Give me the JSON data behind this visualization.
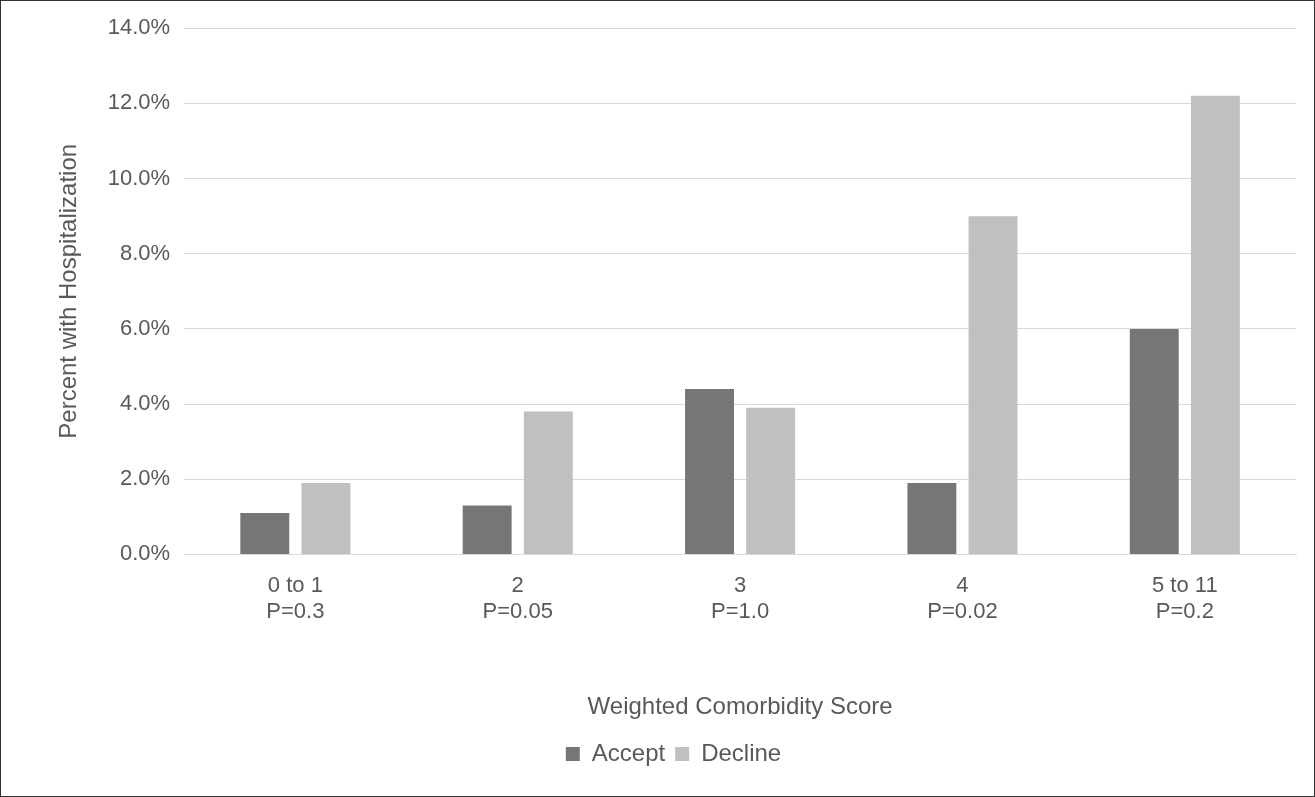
{
  "chart_data": {
    "type": "bar",
    "xlabel": "Weighted Comorbidity Score",
    "ylabel": "Percent with Hospitalization",
    "categories": [
      "0 to 1\nP=0.3",
      "2\nP=0.05",
      "3\nP=1.0",
      "4\nP=0.02",
      "5 to 11\nP=0.2"
    ],
    "series": [
      {
        "name": "Accept",
        "color": "#767676",
        "values": [
          1.1,
          1.3,
          4.4,
          1.9,
          6.0
        ]
      },
      {
        "name": "Decline",
        "color": "#c0c0c0",
        "values": [
          1.9,
          3.8,
          3.9,
          9.0,
          12.2
        ]
      }
    ],
    "ylim": [
      0,
      14
    ],
    "yticks": [
      {
        "value": 0,
        "label": "0.0%"
      },
      {
        "value": 2,
        "label": "2.0%"
      },
      {
        "value": 4,
        "label": "4.0%"
      },
      {
        "value": 6,
        "label": "6.0%"
      },
      {
        "value": 8,
        "label": "8.0%"
      },
      {
        "value": 10,
        "label": "10.0%"
      },
      {
        "value": 12,
        "label": "12.0%"
      },
      {
        "value": 14,
        "label": "14.0%"
      }
    ],
    "grid": "y",
    "legend": "bottom"
  }
}
